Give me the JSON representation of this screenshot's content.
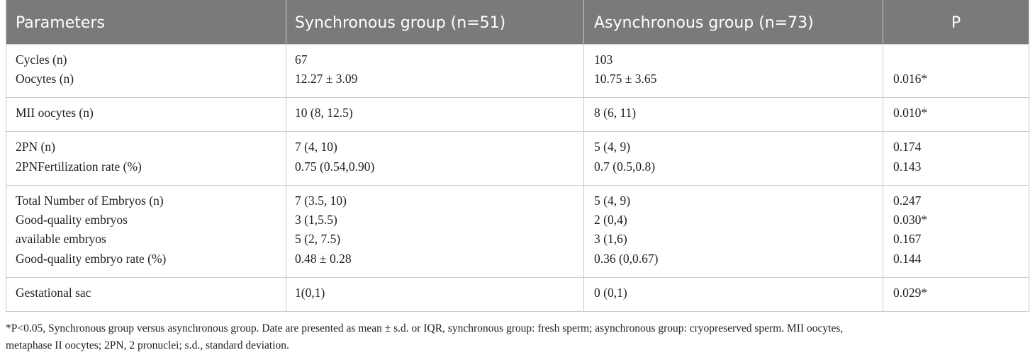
{
  "table": {
    "header": [
      "Parameters",
      "Synchronous group (n=51)",
      "Asynchronous group (n=73)",
      "P"
    ],
    "groups": [
      [
        [
          "Cycles (n)",
          "67",
          "103",
          null
        ],
        [
          "Oocytes (n)",
          "12.27 ± 3.09",
          "10.75 ± 3.65",
          "0.016*"
        ]
      ],
      [
        [
          "MII oocytes (n)",
          "10 (8, 12.5)",
          "8 (6, 11)",
          "0.010*"
        ]
      ],
      [
        [
          "2PN (n)",
          "7 (4, 10)",
          "5 (4, 9)",
          "0.174"
        ],
        [
          "2PNFertilization rate (%)",
          "0.75 (0.54,0.90)",
          "0.7 (0.5,0.8)",
          "0.143"
        ]
      ],
      [
        [
          "Total Number of Embryos (n)",
          "7 (3.5, 10)",
          "5 (4, 9)",
          "0.247"
        ],
        [
          "Good-quality embryos",
          "3 (1,5.5)",
          "2 (0,4)",
          "0.030*"
        ],
        [
          "available embryos",
          "5 (2, 7.5)",
          "3 (1,6)",
          "0.167"
        ],
        [
          "Good-quality embryo rate (%)",
          "0.48 ± 0.28",
          "0.36 (0,0.67)",
          "0.144"
        ]
      ],
      [
        [
          "Gestational sac",
          "1(0,1)",
          "0 (0,1)",
          "0.029*"
        ]
      ]
    ]
  },
  "footnote": [
    "*P<0.05, Synchronous group versus asynchronous group. Date are presented as mean ± s.d. or IQR, synchronous group: fresh sperm; asynchronous group: cryopreserved sperm. MII oocytes,",
    "metaphase II oocytes; 2PN, 2 pronuclei; s.d., standard deviation."
  ]
}
